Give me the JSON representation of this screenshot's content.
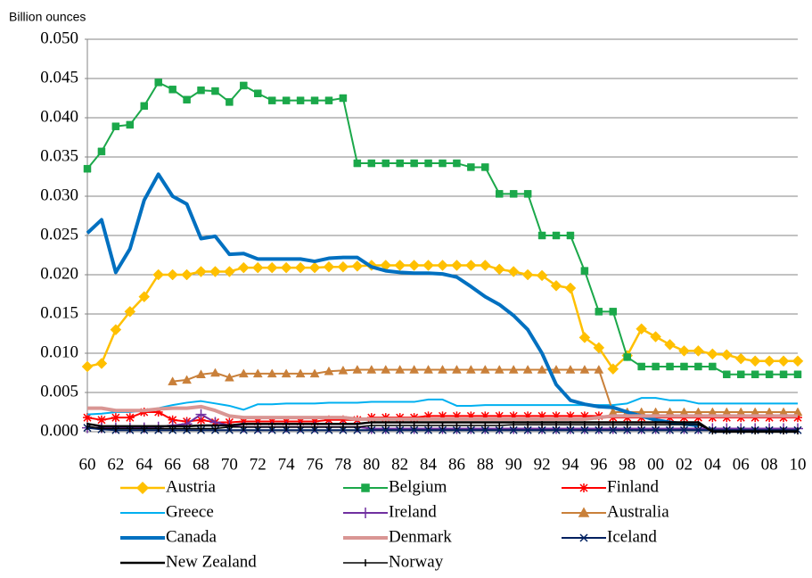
{
  "chart_data": {
    "type": "line",
    "y_label": "Billion ounces",
    "categories": [
      "60",
      null,
      "62",
      null,
      "64",
      null,
      "66",
      null,
      "68",
      null,
      "70",
      null,
      "72",
      null,
      "74",
      null,
      "76",
      null,
      "78",
      null,
      "80",
      null,
      "82",
      null,
      "84",
      null,
      "86",
      null,
      "88",
      null,
      "90",
      null,
      "92",
      null,
      "94",
      null,
      "96",
      null,
      "98",
      null,
      "00",
      null,
      "02",
      null,
      "04",
      null,
      "06",
      null,
      "08",
      null,
      "10"
    ],
    "ylim": [
      0,
      0.05
    ],
    "yticks": [
      {
        "value": 0,
        "label": "0.000"
      },
      {
        "value": 0.005,
        "label": "0.005"
      },
      {
        "value": 0.01,
        "label": "0.010"
      },
      {
        "value": 0.015,
        "label": "0.015"
      },
      {
        "value": 0.02,
        "label": "0.020"
      },
      {
        "value": 0.025,
        "label": "0.025"
      },
      {
        "value": 0.03,
        "label": "0.030"
      },
      {
        "value": 0.035,
        "label": "0.035"
      },
      {
        "value": 0.04,
        "label": "0.040"
      },
      {
        "value": 0.045,
        "label": "0.045"
      },
      {
        "value": 0.05,
        "label": "0.050"
      }
    ],
    "grid": true,
    "legend": "bottom",
    "series": [
      {
        "name": "Austria",
        "color": "#FFC000",
        "marker": "diamond",
        "line_width": 2.5,
        "values": [
          0.0083,
          0.0087,
          0.013,
          0.0153,
          0.0172,
          0.02,
          0.02,
          0.02,
          0.0204,
          0.0204,
          0.0204,
          0.0209,
          0.0209,
          0.0209,
          0.0209,
          0.0209,
          0.0209,
          0.021,
          0.021,
          0.0211,
          0.0212,
          0.0212,
          0.0212,
          0.0212,
          0.0212,
          0.0212,
          0.0212,
          0.0212,
          0.0212,
          0.0207,
          0.0204,
          0.02,
          0.0199,
          0.0186,
          0.0183,
          0.012,
          0.0107,
          0.008,
          0.0097,
          0.0131,
          0.0121,
          0.0111,
          0.0103,
          0.0103,
          0.0099,
          0.0098,
          0.0093,
          0.009,
          0.009,
          0.009,
          0.009
        ]
      },
      {
        "name": "Belgium",
        "color": "#1BA84A",
        "marker": "square",
        "line_width": 2,
        "values": [
          0.0335,
          0.0357,
          0.0389,
          0.0391,
          0.0415,
          0.0445,
          0.0436,
          0.0423,
          0.0435,
          0.0434,
          0.042,
          0.0441,
          0.0431,
          0.0422,
          0.0422,
          0.0422,
          0.0422,
          0.0422,
          0.0425,
          0.0342,
          0.0342,
          0.0342,
          0.0342,
          0.0342,
          0.0342,
          0.0342,
          0.0342,
          0.0337,
          0.0337,
          0.0303,
          0.0303,
          0.0303,
          0.025,
          0.025,
          0.025,
          0.0205,
          0.0153,
          0.0153,
          0.0095,
          0.0083,
          0.0083,
          0.0083,
          0.0083,
          0.0083,
          0.0083,
          0.0073,
          0.0073,
          0.0073,
          0.0073,
          0.0073,
          0.0073
        ]
      },
      {
        "name": "Finland",
        "color": "#FF0000",
        "marker": "asterisk",
        "line_width": 2,
        "values": [
          0.0018,
          0.0015,
          0.0018,
          0.0018,
          0.0025,
          0.0025,
          0.0015,
          0.0013,
          0.0015,
          0.0012,
          0.0012,
          0.0013,
          0.0013,
          0.0013,
          0.0013,
          0.0013,
          0.0013,
          0.0015,
          0.0015,
          0.0015,
          0.0018,
          0.0018,
          0.0018,
          0.0018,
          0.002,
          0.002,
          0.002,
          0.002,
          0.002,
          0.002,
          0.002,
          0.002,
          0.002,
          0.002,
          0.002,
          0.002,
          0.002,
          0.0018,
          0.0018,
          0.0018,
          0.0018,
          0.0018,
          0.0018,
          0.0018,
          0.0018,
          0.0018,
          0.0018,
          0.0018,
          0.0018,
          0.0018,
          0.0018
        ]
      },
      {
        "name": "Greece",
        "color": "#00B0F0",
        "marker": "none",
        "line_width": 2,
        "values": [
          0.0022,
          0.0023,
          0.0025,
          0.0025,
          0.0027,
          0.003,
          0.0034,
          0.0037,
          0.0039,
          0.0036,
          0.0033,
          0.0028,
          0.0035,
          0.0035,
          0.0036,
          0.0036,
          0.0036,
          0.0037,
          0.0037,
          0.0037,
          0.0038,
          0.0038,
          0.0038,
          0.0038,
          0.0041,
          0.0041,
          0.0033,
          0.0033,
          0.0034,
          0.0034,
          0.0034,
          0.0034,
          0.0034,
          0.0034,
          0.0034,
          0.0034,
          0.0034,
          0.0034,
          0.0036,
          0.0043,
          0.0043,
          0.004,
          0.004,
          0.0036,
          0.0036,
          0.0036,
          0.0036,
          0.0036,
          0.0036,
          0.0036,
          0.0036
        ]
      },
      {
        "name": "Ireland",
        "color": "#7030A0",
        "marker": "plus",
        "line_width": 2,
        "values": [
          0.0005,
          0.0005,
          0.0005,
          0.0005,
          0.0005,
          0.0006,
          0.0008,
          0.001,
          0.0022,
          0.0012,
          0.0008,
          0.0006,
          0.0006,
          0.0006,
          0.0006,
          0.0006,
          0.0006,
          0.0006,
          0.0006,
          0.0006,
          0.0004,
          0.0004,
          0.0004,
          0.0004,
          0.0004,
          0.0004,
          0.0004,
          0.0004,
          0.0004,
          0.0004,
          0.0004,
          0.0004,
          0.0004,
          0.0004,
          0.0004,
          0.0004,
          0.0004,
          0.0004,
          0.0004,
          0.0004,
          0.0004,
          0.0004,
          0.0004,
          0.0004,
          0.0004,
          0.0004,
          0.0004,
          0.0004,
          0.0004,
          0.0004,
          0.0004
        ]
      },
      {
        "name": "Australia",
        "color": "#C9803A",
        "marker": "triangle",
        "line_width": 2,
        "values": [
          null,
          null,
          null,
          null,
          null,
          null,
          0.0064,
          0.0066,
          0.0073,
          0.0075,
          0.0069,
          0.0074,
          0.0074,
          0.0074,
          0.0074,
          0.0074,
          0.0074,
          0.0077,
          0.0078,
          0.0079,
          0.0079,
          0.0079,
          0.0079,
          0.0079,
          0.0079,
          0.0079,
          0.0079,
          0.0079,
          0.0079,
          0.0079,
          0.0079,
          0.0079,
          0.0079,
          0.0079,
          0.0079,
          0.0079,
          0.0079,
          0.0025,
          0.0025,
          0.0025,
          0.0025,
          0.0025,
          0.0025,
          0.0025,
          0.0025,
          0.0025,
          0.0025,
          0.0025,
          0.0025,
          0.0025,
          0.0025
        ]
      },
      {
        "name": "Canada",
        "color": "#0070C0",
        "marker": "none",
        "line_width": 4,
        "values": [
          0.0253,
          0.027,
          0.0203,
          0.0233,
          0.0295,
          0.0328,
          0.03,
          0.029,
          0.0246,
          0.0249,
          0.0226,
          0.0227,
          0.022,
          0.022,
          0.022,
          0.022,
          0.0217,
          0.0221,
          0.0222,
          0.0222,
          0.021,
          0.0205,
          0.0203,
          0.0202,
          0.0202,
          0.0201,
          0.0197,
          0.0185,
          0.0172,
          0.0162,
          0.0148,
          0.013,
          0.01,
          0.006,
          0.004,
          0.0035,
          0.0032,
          0.0031,
          0.0025,
          0.002,
          0.0015,
          0.0012,
          0.001,
          0.0008,
          null,
          null,
          null,
          null,
          null,
          null,
          null
        ]
      },
      {
        "name": "Denmark",
        "color": "#D99694",
        "marker": "none",
        "line_width": 4,
        "values": [
          0.003,
          0.003,
          0.0027,
          0.0027,
          0.0027,
          0.0029,
          0.003,
          0.003,
          0.0032,
          0.0027,
          0.002,
          0.0018,
          0.0018,
          0.0018,
          0.0018,
          0.0018,
          0.0018,
          0.0018,
          0.0018,
          0.0016,
          0.0016,
          0.0016,
          0.0016,
          0.0016,
          0.0016,
          0.0016,
          0.0016,
          0.0016,
          0.0016,
          0.0016,
          0.0016,
          0.0016,
          0.0016,
          0.0016,
          0.0016,
          0.0016,
          0.0018,
          0.002,
          0.002,
          0.002,
          0.002,
          0.002,
          0.002,
          0.002,
          0.002,
          0.002,
          0.002,
          0.002,
          0.002,
          0.002,
          0.002
        ]
      },
      {
        "name": "Iceland",
        "color": "#002060",
        "marker": "x",
        "line_width": 2,
        "values": [
          0.0005,
          0.0003,
          0.0002,
          0.0002,
          0.0002,
          0.0002,
          0.0002,
          0.0002,
          0.0002,
          0.0002,
          0.0002,
          0.0002,
          0.0002,
          0.0002,
          0.0002,
          0.0002,
          0.0002,
          0.0002,
          0.0002,
          0.0002,
          0.0002,
          0.0002,
          0.0002,
          0.0002,
          0.0002,
          0.0002,
          0.0002,
          0.0002,
          0.0002,
          0.0002,
          0.0002,
          0.0002,
          0.0002,
          0.0002,
          0.0002,
          0.0002,
          0.0002,
          0.0002,
          0.0002,
          0.0002,
          0.0002,
          0.0002,
          0.0002,
          0.0002,
          0.0002,
          0.0002,
          0.0002,
          0.0002,
          0.0002,
          0.0002,
          0.0002
        ]
      },
      {
        "name": "New Zealand",
        "color": "#000000",
        "marker": "none",
        "line_width": 2.5,
        "values": [
          0.001,
          0.0007,
          0.0007,
          0.0007,
          0.0007,
          0.0007,
          0.0007,
          0.0007,
          0.0008,
          0.0008,
          0.0008,
          0.001,
          0.001,
          0.001,
          0.001,
          0.001,
          0.001,
          0.001,
          0.001,
          0.001,
          0.0012,
          0.0012,
          0.0012,
          0.0012,
          0.0012,
          0.0012,
          0.0012,
          0.0012,
          0.0012,
          0.0012,
          0.0012,
          0.0012,
          0.0012,
          0.0012,
          0.0012,
          0.0012,
          0.0012,
          0.0012,
          0.0012,
          0.0012,
          0.0012,
          0.0012,
          0.0012,
          0.0012,
          0,
          0,
          0,
          0,
          0,
          0,
          0
        ]
      },
      {
        "name": "Norway",
        "color": "#000000",
        "marker": "tick",
        "line_width": 1.5,
        "values": [
          0.0007,
          0.0004,
          0.0004,
          0.0004,
          0.0004,
          0.0004,
          0.0004,
          0.0004,
          0.0004,
          0.0004,
          0.0006,
          0.0006,
          0.0006,
          0.0006,
          0.0006,
          0.0006,
          0.0006,
          0.0006,
          0.0006,
          0.0006,
          0.0008,
          0.0008,
          0.0008,
          0.0008,
          0.0008,
          0.0008,
          0.0008,
          0.0008,
          0.0008,
          0.0008,
          0.0009,
          0.0009,
          0.0009,
          0.0009,
          0.0009,
          0.0009,
          0.0009,
          0.0009,
          0.0009,
          0.0009,
          0.0009,
          0.0009,
          0.0009,
          0.0009,
          0.0001,
          0.0001,
          0.0001,
          0.0001,
          0.0001,
          0.0001,
          0.0001
        ]
      }
    ]
  }
}
